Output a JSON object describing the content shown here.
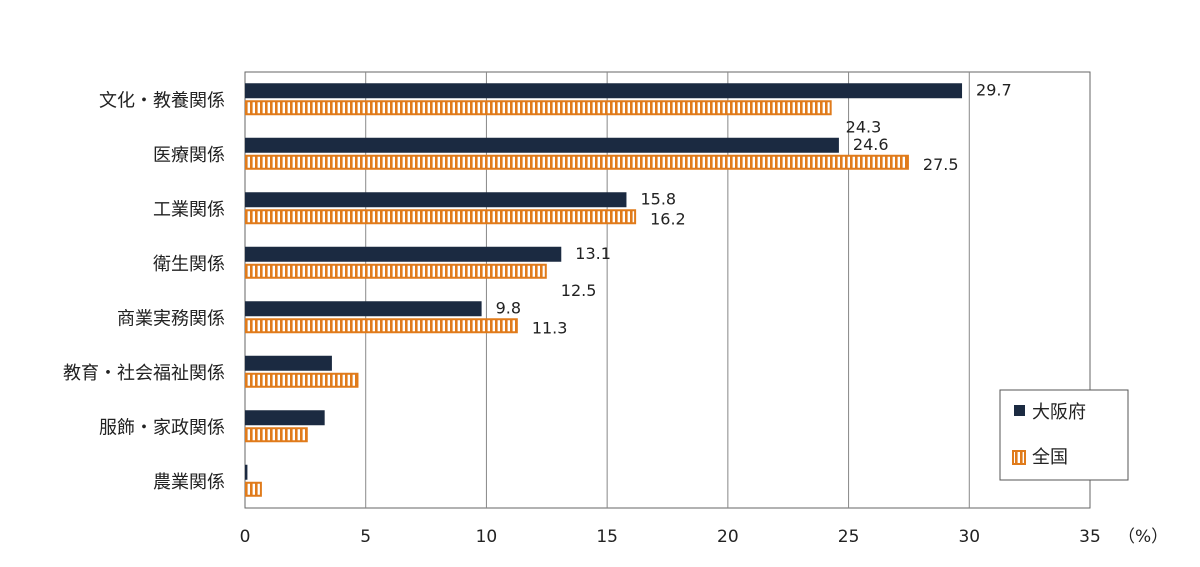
{
  "chart_data": {
    "type": "bar",
    "orientation": "horizontal",
    "categories": [
      "文化・教養関係",
      "医療関係",
      "工業関係",
      "衛生関係",
      "商業実務関係",
      "教育・社会福祉関係",
      "服飾・家政関係",
      "農業関係"
    ],
    "series": [
      {
        "name": "大阪府",
        "values": [
          29.7,
          24.6,
          15.8,
          13.1,
          9.8,
          3.6,
          3.3,
          0.1
        ],
        "labels": [
          "29.7",
          "24.6",
          "15.8",
          "13.1",
          "9.8",
          "",
          "",
          ""
        ],
        "color": "#1b2a41"
      },
      {
        "name": "全国",
        "values": [
          24.3,
          27.5,
          16.2,
          12.5,
          11.3,
          4.7,
          2.6,
          0.7
        ],
        "labels": [
          "24.3",
          "27.5",
          "16.2",
          "12.5",
          "11.3",
          "",
          "",
          ""
        ],
        "color": "#e07b1b"
      }
    ],
    "xlim": [
      0,
      35
    ],
    "xticks": [
      "0",
      "5",
      "10",
      "15",
      "20",
      "25",
      "30",
      "35"
    ],
    "xunit": "（%）",
    "grid": true,
    "legend": "bottom-right"
  }
}
